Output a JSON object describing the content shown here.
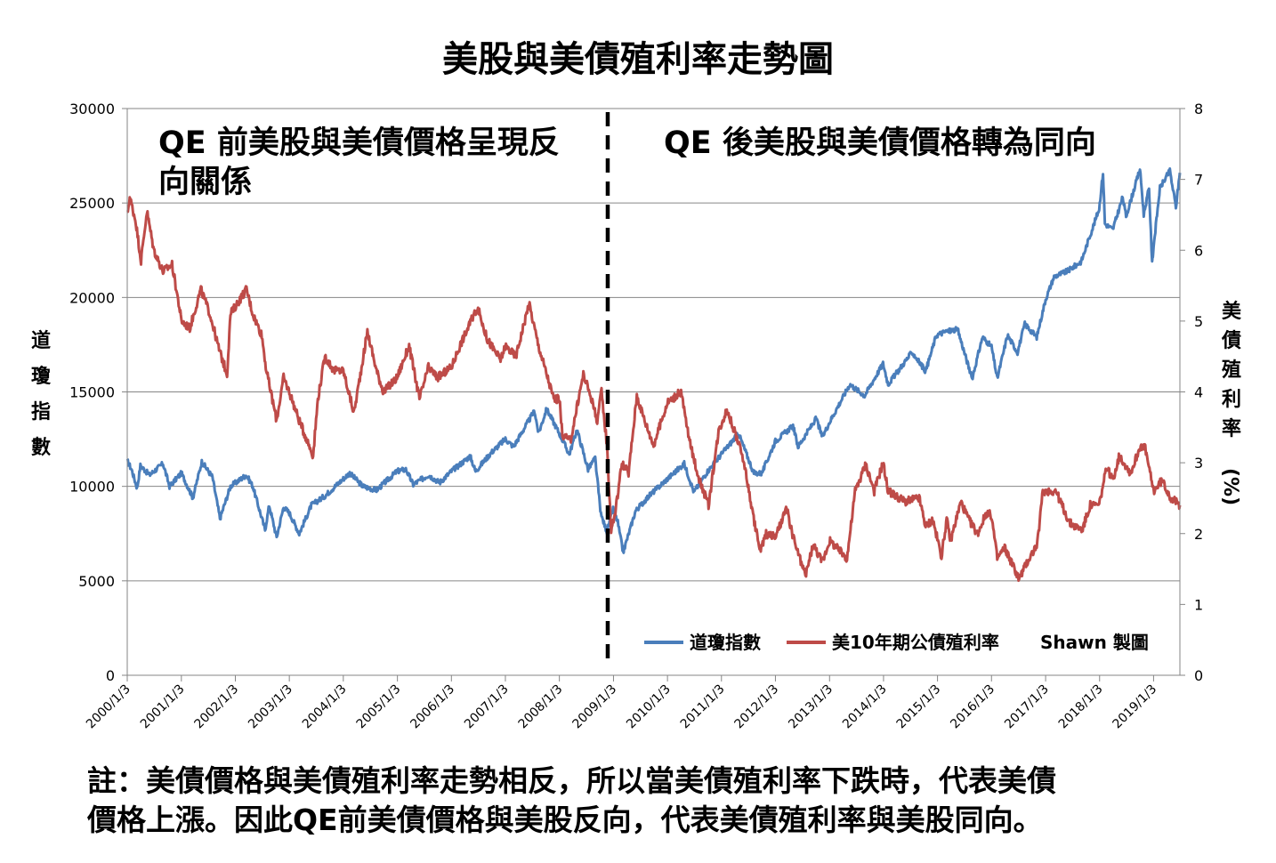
{
  "title": "美股與美債殖利率走勢圖",
  "note": {
    "line1": "註：美債價格與美債殖利率走勢相反，所以當美債殖利率下跌時，代表美債",
    "line2": "價格上漲。因此QE前美債價格與美股反向，代表美債殖利率與美股同向。"
  },
  "colors": {
    "dow": "#4a7ebb",
    "yield": "#be4b48",
    "grid": "#868686",
    "divider": "#000000"
  },
  "chart_data": {
    "type": "line",
    "title": "美股與美債殖利率走勢圖",
    "ylabel": "道瓊指數",
    "y2label": "美債殖利率(%)",
    "ylim": [
      0,
      30000
    ],
    "y2lim": [
      0,
      8
    ],
    "yticks": [
      "0",
      "5000",
      "10000",
      "15000",
      "20000",
      "25000",
      "30000"
    ],
    "y2ticks": [
      "0",
      "1",
      "2",
      "3",
      "4",
      "5",
      "6",
      "7",
      "8"
    ],
    "xlim": [
      "2000/1/3",
      "2019/6/30"
    ],
    "xticks": [
      "2000/1/3",
      "2001/1/3",
      "2002/1/3",
      "2003/1/3",
      "2004/1/3",
      "2005/1/3",
      "2006/1/3",
      "2007/1/3",
      "2008/1/3",
      "2009/1/3",
      "2010/1/3",
      "2011/1/3",
      "2012/1/3",
      "2013/1/3",
      "2014/1/3",
      "2015/1/3",
      "2016/1/3",
      "2017/1/3",
      "2018/1/3",
      "2019/1/3"
    ],
    "grid": true,
    "legend_position": "bottom-right",
    "legend_extra": "Shawn 製圖",
    "divider": {
      "x": "2008/11/25"
    },
    "annotations": [
      {
        "id": "before",
        "lines": [
          "QE 前美股與美債價格呈現反",
          "向關係"
        ]
      },
      {
        "id": "after",
        "lines": [
          "QE 後美股與美債價格轉為同向"
        ]
      }
    ],
    "series": [
      {
        "name": "道瓊指數",
        "axis": "left",
        "points": [
          [
            "2000/1/3",
            11350
          ],
          [
            "2000/2/1",
            10900
          ],
          [
            "2000/3/10",
            9900
          ],
          [
            "2000/4/1",
            11100
          ],
          [
            "2000/6/1",
            10600
          ],
          [
            "2000/9/1",
            11200
          ],
          [
            "2000/10/15",
            10000
          ],
          [
            "2001/1/3",
            10700
          ],
          [
            "2001/3/22",
            9400
          ],
          [
            "2001/5/21",
            11300
          ],
          [
            "2001/8/1",
            10500
          ],
          [
            "2001/9/21",
            8300
          ],
          [
            "2001/12/1",
            10000
          ],
          [
            "2002/3/19",
            10600
          ],
          [
            "2002/5/1",
            10000
          ],
          [
            "2002/7/23",
            7700
          ],
          [
            "2002/8/20",
            9000
          ],
          [
            "2002/10/9",
            7300
          ],
          [
            "2002/11/25",
            8900
          ],
          [
            "2003/1/3",
            8600
          ],
          [
            "2003/3/11",
            7500
          ],
          [
            "2003/6/1",
            9000
          ],
          [
            "2003/9/1",
            9500
          ],
          [
            "2004/1/3",
            10400
          ],
          [
            "2004/2/15",
            10700
          ],
          [
            "2004/5/15",
            10000
          ],
          [
            "2004/8/15",
            9800
          ],
          [
            "2004/12/31",
            10800
          ],
          [
            "2005/3/1",
            10900
          ],
          [
            "2005/4/20",
            10100
          ],
          [
            "2005/8/1",
            10600
          ],
          [
            "2005/10/15",
            10200
          ],
          [
            "2006/1/3",
            10800
          ],
          [
            "2006/5/10",
            11600
          ],
          [
            "2006/6/15",
            10800
          ],
          [
            "2006/10/1",
            11800
          ],
          [
            "2007/1/3",
            12500
          ],
          [
            "2007/2/27",
            12100
          ],
          [
            "2007/7/19",
            14000
          ],
          [
            "2007/8/15",
            12800
          ],
          [
            "2007/10/9",
            14100
          ],
          [
            "2008/1/3",
            12800
          ],
          [
            "2008/3/10",
            11700
          ],
          [
            "2008/5/1",
            13000
          ],
          [
            "2008/7/15",
            10900
          ],
          [
            "2008/9/1",
            11500
          ],
          [
            "2008/10/10",
            8500
          ],
          [
            "2008/11/20",
            7600
          ],
          [
            "2008/12/31",
            8800
          ],
          [
            "2009/2/1",
            8100
          ],
          [
            "2009/3/9",
            6500
          ],
          [
            "2009/6/1",
            8700
          ],
          [
            "2009/9/1",
            9500
          ],
          [
            "2010/1/3",
            10400
          ],
          [
            "2010/4/26",
            11200
          ],
          [
            "2010/7/1",
            9700
          ],
          [
            "2010/10/1",
            10800
          ],
          [
            "2011/1/3",
            11700
          ],
          [
            "2011/4/29",
            12800
          ],
          [
            "2011/8/10",
            10700
          ],
          [
            "2011/10/3",
            10700
          ],
          [
            "2012/1/3",
            12400
          ],
          [
            "2012/5/1",
            13200
          ],
          [
            "2012/6/4",
            12100
          ],
          [
            "2012/10/5",
            13600
          ],
          [
            "2012/11/15",
            12600
          ],
          [
            "2013/1/3",
            13400
          ],
          [
            "2013/5/20",
            15400
          ],
          [
            "2013/8/28",
            14800
          ],
          [
            "2013/12/31",
            16500
          ],
          [
            "2014/2/3",
            15400
          ],
          [
            "2014/7/15",
            17100
          ],
          [
            "2014/10/15",
            16100
          ],
          [
            "2014/12/26",
            18000
          ],
          [
            "2015/3/1",
            18200
          ],
          [
            "2015/5/19",
            18300
          ],
          [
            "2015/8/25",
            15700
          ],
          [
            "2015/11/3",
            17900
          ],
          [
            "2016/1/3",
            17400
          ],
          [
            "2016/2/11",
            15700
          ],
          [
            "2016/4/20",
            18000
          ],
          [
            "2016/6/27",
            17100
          ],
          [
            "2016/8/15",
            18600
          ],
          [
            "2016/11/4",
            17900
          ],
          [
            "2017/1/3",
            19900
          ],
          [
            "2017/3/1",
            21100
          ],
          [
            "2017/6/1",
            21400
          ],
          [
            "2017/9/1",
            21900
          ],
          [
            "2017/12/31",
            24700
          ],
          [
            "2018/1/26",
            26600
          ],
          [
            "2018/2/8",
            23900
          ],
          [
            "2018/4/2",
            23600
          ],
          [
            "2018/6/8",
            25300
          ],
          [
            "2018/7/1",
            24300
          ],
          [
            "2018/10/3",
            26800
          ],
          [
            "2018/10/29",
            24400
          ],
          [
            "2018/12/3",
            25800
          ],
          [
            "2018/12/24",
            21800
          ],
          [
            "2019/1/3",
            22700
          ],
          [
            "2019/2/15",
            25800
          ],
          [
            "2019/4/23",
            26700
          ],
          [
            "2019/6/3",
            24800
          ],
          [
            "2019/6/30",
            26600
          ]
        ]
      },
      {
        "name": "美10年期公債殖利率",
        "axis": "right",
        "points": [
          [
            "2000/1/3",
            6.5
          ],
          [
            "2000/1/20",
            6.75
          ],
          [
            "2000/3/1",
            6.4
          ],
          [
            "2000/4/5",
            5.85
          ],
          [
            "2000/5/15",
            6.55
          ],
          [
            "2000/7/1",
            6.0
          ],
          [
            "2000/9/1",
            5.7
          ],
          [
            "2000/11/1",
            5.8
          ],
          [
            "2000/12/20",
            5.2
          ],
          [
            "2001/1/3",
            5.0
          ],
          [
            "2001/3/1",
            4.9
          ],
          [
            "2001/5/15",
            5.45
          ],
          [
            "2001/7/15",
            5.1
          ],
          [
            "2001/9/15",
            4.6
          ],
          [
            "2001/11/8",
            4.25
          ],
          [
            "2001/12/1",
            5.1
          ],
          [
            "2002/3/19",
            5.45
          ],
          [
            "2002/5/1",
            5.1
          ],
          [
            "2002/7/1",
            4.8
          ],
          [
            "2002/8/1",
            4.3
          ],
          [
            "2002/10/9",
            3.6
          ],
          [
            "2002/11/25",
            4.2
          ],
          [
            "2003/1/3",
            4.0
          ],
          [
            "2003/3/10",
            3.6
          ],
          [
            "2003/6/13",
            3.1
          ],
          [
            "2003/7/15",
            3.9
          ],
          [
            "2003/9/1",
            4.5
          ],
          [
            "2003/11/1",
            4.3
          ],
          [
            "2004/1/3",
            4.3
          ],
          [
            "2004/3/15",
            3.7
          ],
          [
            "2004/6/14",
            4.85
          ],
          [
            "2004/8/15",
            4.3
          ],
          [
            "2004/10/1",
            4.0
          ],
          [
            "2004/12/31",
            4.2
          ],
          [
            "2005/3/23",
            4.65
          ],
          [
            "2005/6/1",
            3.9
          ],
          [
            "2005/8/1",
            4.35
          ],
          [
            "2005/10/1",
            4.2
          ],
          [
            "2006/1/3",
            4.35
          ],
          [
            "2006/3/1",
            4.65
          ],
          [
            "2006/6/28",
            5.2
          ],
          [
            "2006/9/1",
            4.75
          ],
          [
            "2006/12/1",
            4.45
          ],
          [
            "2007/1/3",
            4.65
          ],
          [
            "2007/3/15",
            4.5
          ],
          [
            "2007/6/12",
            5.25
          ],
          [
            "2007/8/15",
            4.65
          ],
          [
            "2007/11/26",
            3.9
          ],
          [
            "2008/1/3",
            3.9
          ],
          [
            "2008/1/23",
            3.4
          ],
          [
            "2008/3/17",
            3.3
          ],
          [
            "2008/6/13",
            4.25
          ],
          [
            "2008/8/1",
            3.95
          ],
          [
            "2008/9/15",
            3.6
          ],
          [
            "2008/10/14",
            4.0
          ],
          [
            "2008/11/20",
            3.25
          ],
          [
            "2008/12/18",
            2.05
          ],
          [
            "2009/1/15",
            2.3
          ],
          [
            "2009/3/1",
            3.0
          ],
          [
            "2009/4/15",
            2.85
          ],
          [
            "2009/6/10",
            3.95
          ],
          [
            "2009/8/1",
            3.6
          ],
          [
            "2009/10/1",
            3.25
          ],
          [
            "2010/1/3",
            3.85
          ],
          [
            "2010/4/5",
            4.0
          ],
          [
            "2010/6/1",
            3.3
          ],
          [
            "2010/8/1",
            2.8
          ],
          [
            "2010/10/8",
            2.4
          ],
          [
            "2010/12/15",
            3.45
          ],
          [
            "2011/2/8",
            3.75
          ],
          [
            "2011/4/1",
            3.45
          ],
          [
            "2011/6/1",
            3.05
          ],
          [
            "2011/8/1",
            2.3
          ],
          [
            "2011/9/22",
            1.75
          ],
          [
            "2011/11/1",
            2.0
          ],
          [
            "2012/1/3",
            1.95
          ],
          [
            "2012/3/19",
            2.35
          ],
          [
            "2012/5/1",
            1.95
          ],
          [
            "2012/7/24",
            1.4
          ],
          [
            "2012/9/14",
            1.85
          ],
          [
            "2012/11/15",
            1.6
          ],
          [
            "2013/1/3",
            1.9
          ],
          [
            "2013/5/1",
            1.65
          ],
          [
            "2013/6/25",
            2.6
          ],
          [
            "2013/9/5",
            2.98
          ],
          [
            "2013/11/1",
            2.6
          ],
          [
            "2013/12/31",
            3.0
          ],
          [
            "2014/2/3",
            2.6
          ],
          [
            "2014/5/29",
            2.45
          ],
          [
            "2014/9/1",
            2.5
          ],
          [
            "2014/10/15",
            2.1
          ],
          [
            "2014/12/1",
            2.2
          ],
          [
            "2015/1/30",
            1.68
          ],
          [
            "2015/3/6",
            2.2
          ],
          [
            "2015/4/1",
            1.9
          ],
          [
            "2015/6/10",
            2.45
          ],
          [
            "2015/8/1",
            2.2
          ],
          [
            "2015/10/1",
            2.0
          ],
          [
            "2015/12/1",
            2.3
          ],
          [
            "2016/1/3",
            2.25
          ],
          [
            "2016/2/11",
            1.65
          ],
          [
            "2016/4/1",
            1.8
          ],
          [
            "2016/7/8",
            1.36
          ],
          [
            "2016/9/1",
            1.6
          ],
          [
            "2016/11/8",
            1.85
          ],
          [
            "2016/12/15",
            2.6
          ],
          [
            "2017/3/14",
            2.6
          ],
          [
            "2017/6/14",
            2.15
          ],
          [
            "2017/9/7",
            2.05
          ],
          [
            "2017/11/1",
            2.4
          ],
          [
            "2017/12/31",
            2.4
          ],
          [
            "2018/2/21",
            2.95
          ],
          [
            "2018/4/1",
            2.75
          ],
          [
            "2018/5/17",
            3.1
          ],
          [
            "2018/8/1",
            2.85
          ],
          [
            "2018/10/8",
            3.25
          ],
          [
            "2018/11/8",
            3.2
          ],
          [
            "2018/12/10",
            2.85
          ],
          [
            "2019/1/3",
            2.6
          ],
          [
            "2019/3/1",
            2.75
          ],
          [
            "2019/5/1",
            2.5
          ],
          [
            "2019/6/30",
            2.4
          ]
        ]
      }
    ]
  }
}
